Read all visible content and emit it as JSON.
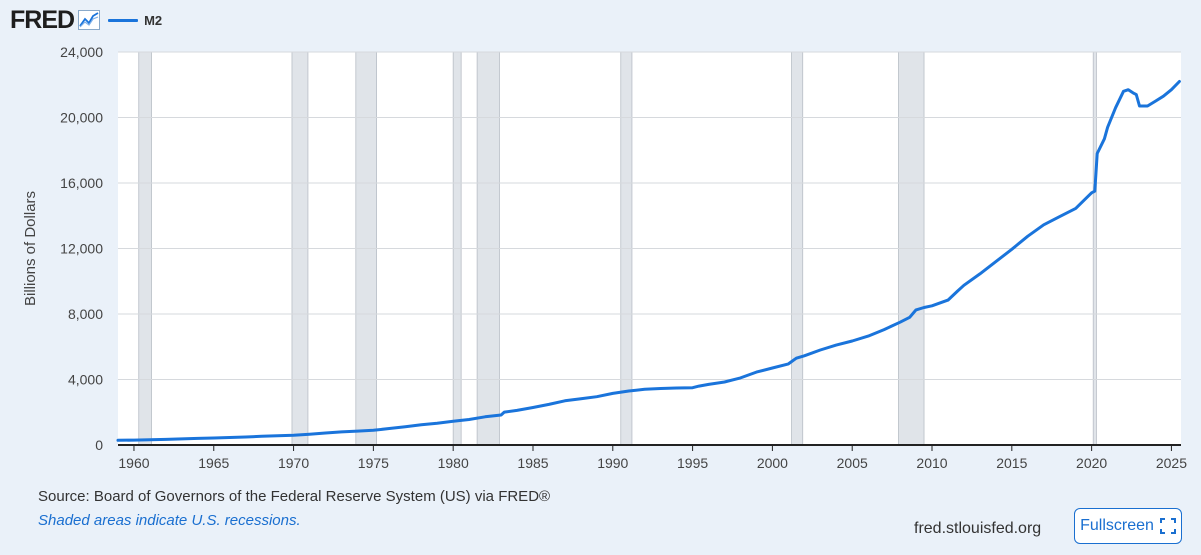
{
  "header": {
    "logo": "FRED",
    "logo_icon": "trend-line-icon",
    "legend_label": "M2"
  },
  "footer": {
    "source": "Source: Board of Governors of the Federal Reserve System (US) via FRED®",
    "recession_note": "Shaded areas indicate U.S. recessions.",
    "site": "fred.stlouisfed.org",
    "fullscreen_label": "Fullscreen",
    "fullscreen_icon": "fullscreen-icon"
  },
  "colors": {
    "series": "#1a74db",
    "recession": "#e0e4e9",
    "background": "#eaf1f9",
    "plot_background": "#ffffff",
    "accent": "#1a6fd0"
  },
  "chart_data": {
    "type": "line",
    "title": "",
    "xlabel": "",
    "ylabel": "Billions of Dollars",
    "xlim": [
      1959.0,
      2025.6
    ],
    "ylim": [
      0,
      24000
    ],
    "yticks": [
      0,
      4000,
      8000,
      12000,
      16000,
      20000,
      24000
    ],
    "ytick_labels": [
      "0",
      "4,000",
      "8,000",
      "12,000",
      "16,000",
      "20,000",
      "24,000"
    ],
    "xticks": [
      1960,
      1965,
      1970,
      1975,
      1980,
      1985,
      1990,
      1995,
      2000,
      2005,
      2010,
      2015,
      2020,
      2025
    ],
    "xtick_labels": [
      "1960",
      "1965",
      "1970",
      "1975",
      "1980",
      "1985",
      "1990",
      "1995",
      "2000",
      "2005",
      "2010",
      "2015",
      "2020",
      "2025"
    ],
    "grid": "horizontal",
    "legend": "top-left",
    "recessions": [
      [
        1960.3,
        1961.1
      ],
      [
        1969.9,
        1970.9
      ],
      [
        1973.9,
        1975.2
      ],
      [
        1980.0,
        1980.5
      ],
      [
        1981.5,
        1982.9
      ],
      [
        1990.5,
        1991.2
      ],
      [
        2001.2,
        2001.9
      ],
      [
        2007.9,
        2009.5
      ],
      [
        2020.1,
        2020.3
      ]
    ],
    "series": [
      {
        "name": "M2",
        "points": [
          [
            1959.0,
            290
          ],
          [
            1960.0,
            300
          ],
          [
            1961.0,
            320
          ],
          [
            1962.0,
            340
          ],
          [
            1963.0,
            370
          ],
          [
            1964.0,
            400
          ],
          [
            1965.0,
            430
          ],
          [
            1966.0,
            460
          ],
          [
            1967.0,
            490
          ],
          [
            1968.0,
            530
          ],
          [
            1969.0,
            570
          ],
          [
            1970.0,
            600
          ],
          [
            1971.0,
            660
          ],
          [
            1972.0,
            730
          ],
          [
            1973.0,
            800
          ],
          [
            1974.0,
            850
          ],
          [
            1975.0,
            900
          ],
          [
            1976.0,
            1010
          ],
          [
            1977.0,
            1120
          ],
          [
            1978.0,
            1240
          ],
          [
            1979.0,
            1330
          ],
          [
            1980.0,
            1450
          ],
          [
            1981.0,
            1560
          ],
          [
            1982.0,
            1720
          ],
          [
            1983.0,
            1830
          ],
          [
            1983.2,
            2010
          ],
          [
            1984.0,
            2110
          ],
          [
            1985.0,
            2290
          ],
          [
            1986.0,
            2480
          ],
          [
            1987.0,
            2700
          ],
          [
            1988.0,
            2820
          ],
          [
            1989.0,
            2950
          ],
          [
            1990.0,
            3150
          ],
          [
            1991.0,
            3300
          ],
          [
            1992.0,
            3400
          ],
          [
            1993.0,
            3450
          ],
          [
            1994.0,
            3480
          ],
          [
            1995.0,
            3500
          ],
          [
            1995.4,
            3600
          ],
          [
            1996.0,
            3700
          ],
          [
            1997.0,
            3850
          ],
          [
            1998.0,
            4100
          ],
          [
            1999.0,
            4450
          ],
          [
            2000.0,
            4700
          ],
          [
            2001.0,
            4950
          ],
          [
            2001.5,
            5300
          ],
          [
            2002.0,
            5450
          ],
          [
            2003.0,
            5800
          ],
          [
            2004.0,
            6100
          ],
          [
            2005.0,
            6350
          ],
          [
            2006.0,
            6650
          ],
          [
            2007.0,
            7050
          ],
          [
            2008.0,
            7500
          ],
          [
            2008.6,
            7800
          ],
          [
            2009.0,
            8250
          ],
          [
            2009.5,
            8400
          ],
          [
            2010.0,
            8500
          ],
          [
            2011.0,
            8850
          ],
          [
            2011.6,
            9400
          ],
          [
            2012.0,
            9750
          ],
          [
            2013.0,
            10450
          ],
          [
            2014.0,
            11200
          ],
          [
            2015.0,
            11950
          ],
          [
            2016.0,
            12750
          ],
          [
            2017.0,
            13450
          ],
          [
            2018.0,
            13950
          ],
          [
            2019.0,
            14450
          ],
          [
            2020.0,
            15400
          ],
          [
            2020.2,
            15500
          ],
          [
            2020.35,
            17800
          ],
          [
            2020.8,
            18700
          ],
          [
            2021.0,
            19400
          ],
          [
            2021.5,
            20600
          ],
          [
            2022.0,
            21600
          ],
          [
            2022.3,
            21700
          ],
          [
            2022.6,
            21500
          ],
          [
            2022.8,
            21400
          ],
          [
            2023.0,
            20700
          ],
          [
            2023.5,
            20700
          ],
          [
            2024.0,
            21000
          ],
          [
            2024.5,
            21300
          ],
          [
            2025.0,
            21700
          ],
          [
            2025.5,
            22200
          ]
        ]
      }
    ]
  }
}
